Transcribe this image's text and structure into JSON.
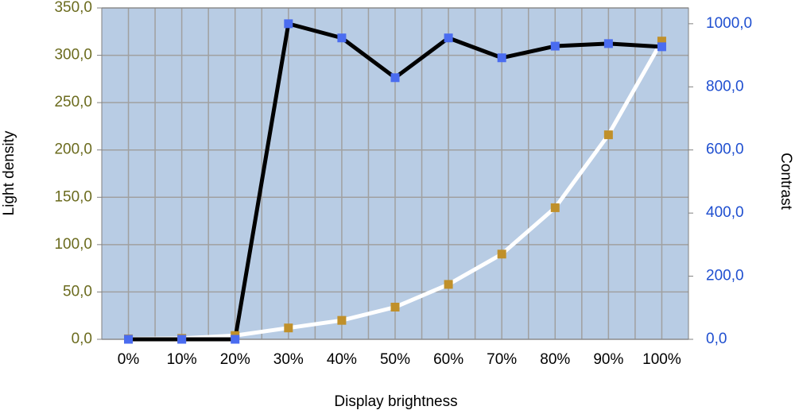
{
  "chart_data": {
    "type": "line",
    "x_label": "Display brightness",
    "y_label": "Light density",
    "y2_label": "Contrast",
    "categories": [
      "0%",
      "10%",
      "20%",
      "30%",
      "40%",
      "50%",
      "60%",
      "70%",
      "80%",
      "90%",
      "100%"
    ],
    "series": [
      {
        "color": "#c0902a",
        "line_color": "#ffffff",
        "axis": "y",
        "values": [
          0.5,
          1,
          4,
          12,
          20,
          34,
          58,
          90,
          139,
          216,
          315
        ]
      },
      {
        "color": "#4a6cf0",
        "line_color": "#000000",
        "axis": "y2",
        "values": [
          0,
          0,
          0,
          1000,
          955,
          829,
          955,
          892,
          929,
          937,
          927
        ]
      }
    ],
    "ylim": [
      0,
      350
    ],
    "yticks": [
      {
        "value": 0,
        "label": "0,0"
      },
      {
        "value": 50,
        "label": "50,0"
      },
      {
        "value": 100,
        "label": "100,0"
      },
      {
        "value": 150,
        "label": "150,0"
      },
      {
        "value": 200,
        "label": "200,0"
      },
      {
        "value": 250,
        "label": "250,0"
      },
      {
        "value": 300,
        "label": "300,0"
      },
      {
        "value": 350,
        "label": "350,0"
      }
    ],
    "y2lim": [
      0,
      1050
    ],
    "y2ticks": [
      {
        "value": 0,
        "label": "0,0"
      },
      {
        "value": 200,
        "label": "200,0"
      },
      {
        "value": 400,
        "label": "400,0"
      },
      {
        "value": 600,
        "label": "600,0"
      },
      {
        "value": 800,
        "label": "800,0"
      },
      {
        "value": 1000,
        "label": "1000,0"
      }
    ],
    "grid": true,
    "y_tick_color": "#6b6b1e",
    "y2_tick_color": "#1f4fd0",
    "plot_background": "#b8cce4"
  }
}
